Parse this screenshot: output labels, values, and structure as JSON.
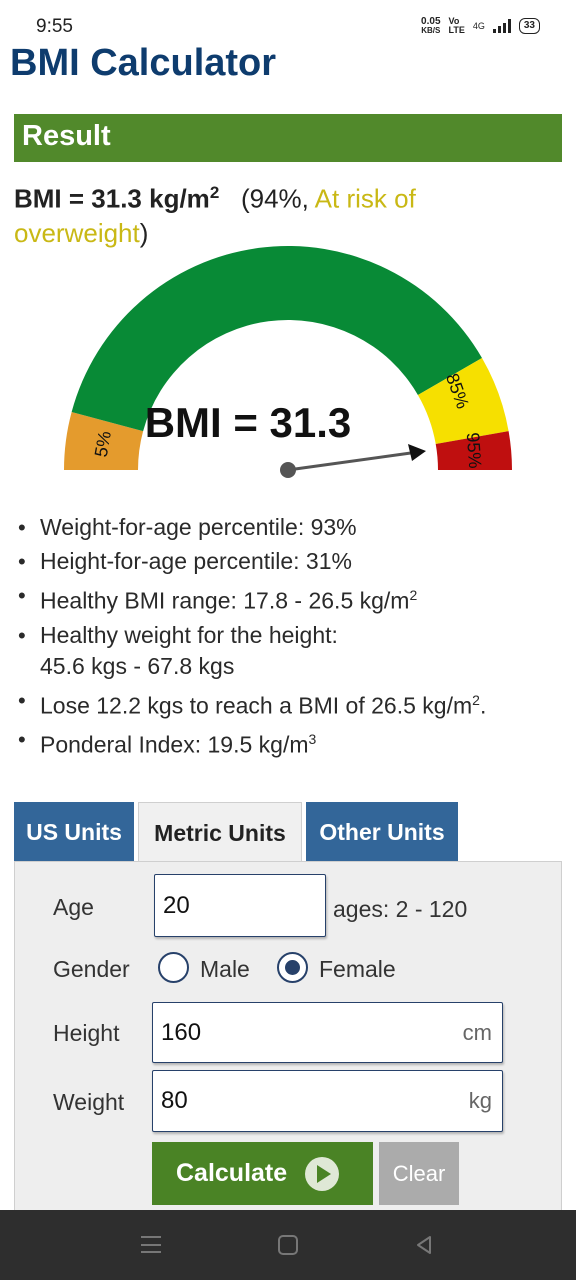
{
  "status_bar": {
    "time": "9:55",
    "speed_value": "0.05",
    "speed_unit": "KB/S",
    "volte_top": "Vo",
    "volte_bottom": "LTE",
    "network": "4G",
    "battery": "33"
  },
  "app": {
    "title": "BMI Calculator"
  },
  "result": {
    "header": "Result",
    "bmi_prefix": "BMI = 31.3 kg/m",
    "bmi_exponent": "2",
    "percentile_open": "(94%, ",
    "risk_text": "At risk of overweight",
    "percentile_close": ")"
  },
  "gauge": {
    "center_label": "BMI = 31.3",
    "bmi_value": 31.3,
    "zone_labels": [
      "5%",
      "85%",
      "95%"
    ],
    "colors": {
      "underweight": "#e49b2d",
      "healthy": "#088a36",
      "risk": "#f6e000",
      "overweight": "#bf0f0f",
      "needle": "#555555"
    }
  },
  "info": [
    {
      "text": "Weight-for-age percentile: 93%"
    },
    {
      "text": "Height-for-age percentile: 31%"
    },
    {
      "text": "Healthy BMI range: 17.8 - 26.5 kg/m",
      "sup": "2"
    },
    {
      "text": "Healthy weight for the height:",
      "line2": "45.6 kgs - 67.8 kgs"
    },
    {
      "text": "Lose 12.2 kgs to reach a BMI of 26.5 kg/m",
      "sup": "2",
      "tail": "."
    },
    {
      "text": "Ponderal Index: 19.5 kg/m",
      "sup": "3"
    }
  ],
  "tabs": [
    {
      "label": "US Units",
      "active": false
    },
    {
      "label": "Metric Units",
      "active": true
    },
    {
      "label": "Other Units",
      "active": false
    }
  ],
  "form": {
    "age_label": "Age",
    "age_value": "20",
    "age_hint": "ages: 2 - 120",
    "gender_label": "Gender",
    "gender_options": [
      "Male",
      "Female"
    ],
    "gender_selected": "Female",
    "height_label": "Height",
    "height_value": "160",
    "height_unit": "cm",
    "weight_label": "Weight",
    "weight_value": "80",
    "weight_unit": "kg"
  },
  "buttons": {
    "calculate": "Calculate",
    "clear": "Clear"
  },
  "nav": {
    "icons": [
      "menu-icon",
      "home-icon",
      "back-icon"
    ]
  }
}
